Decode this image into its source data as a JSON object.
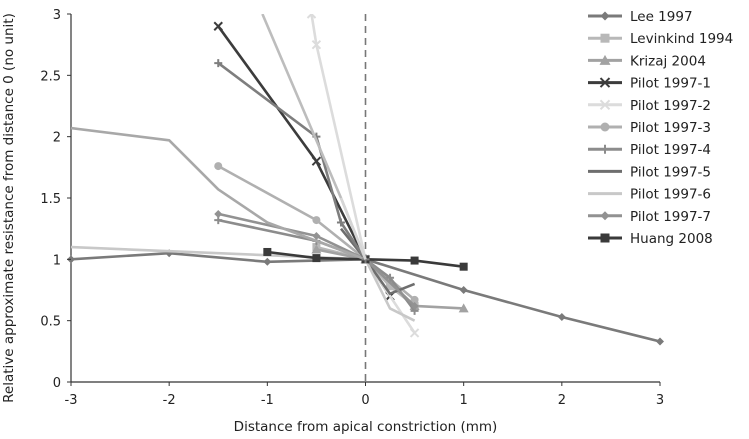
{
  "chart_data": {
    "type": "line",
    "title": "",
    "xlabel": "Distance from apical constriction (mm)",
    "ylabel": "Relative approximate resistance from distance 0 (no unit)",
    "xlim": [
      -3,
      3
    ],
    "ylim": [
      0,
      3
    ],
    "xticks": [
      "-3",
      "-2",
      "-1",
      "0",
      "1",
      "2",
      "3"
    ],
    "yticks": [
      "0",
      "0.5",
      "1",
      "1.5",
      "2",
      "2.5",
      "3"
    ],
    "grid": false,
    "legend_position": "right",
    "reference_line": {
      "x": 0,
      "style": "dashed"
    },
    "series": [
      {
        "name": "Lee 1997",
        "color": "#7a7a7a",
        "marker": "diamond",
        "points": [
          [
            -3,
            1.0
          ],
          [
            -2,
            1.05
          ],
          [
            -1,
            0.98
          ],
          [
            0,
            1.0
          ],
          [
            1,
            0.75
          ],
          [
            2,
            0.53
          ],
          [
            3,
            0.33
          ]
        ]
      },
      {
        "name": "Levinkind 1994",
        "color": "#b8b8b8",
        "marker": "square",
        "points": [
          [
            -0.5,
            1.1
          ],
          [
            0,
            1.0
          ],
          [
            0.25,
            0.78
          ],
          [
            0.5,
            0.62
          ]
        ]
      },
      {
        "name": "Krizaj 2004",
        "color": "#a2a2a2",
        "marker": "triangle",
        "points": [
          [
            -0.5,
            1.08
          ],
          [
            0,
            1.0
          ],
          [
            0.5,
            0.62
          ],
          [
            1,
            0.6
          ]
        ]
      },
      {
        "name": "Pilot 1997-1",
        "color": "#3c3c3c",
        "marker": "x",
        "points": [
          [
            -1.5,
            2.9
          ],
          [
            -0.5,
            1.8
          ],
          [
            0,
            1.0
          ],
          [
            0.25,
            0.7
          ]
        ]
      },
      {
        "name": "Pilot 1997-2",
        "color": "#dcdcdc",
        "marker": "x",
        "points": [
          [
            -0.55,
            3.0
          ],
          [
            -0.5,
            2.75
          ],
          [
            0,
            1.0
          ],
          [
            0.5,
            0.4
          ]
        ]
      },
      {
        "name": "Pilot 1997-3",
        "color": "#b0b0b0",
        "marker": "circle",
        "points": [
          [
            -1.5,
            1.76
          ],
          [
            -0.5,
            1.32
          ],
          [
            0,
            1.0
          ],
          [
            0.5,
            0.67
          ]
        ]
      },
      {
        "name": "Pilot 1997-4",
        "color": "#8c8c8c",
        "marker": "plus",
        "points": [
          [
            -1.5,
            1.32
          ],
          [
            -0.5,
            1.15
          ],
          [
            0,
            1.0
          ],
          [
            0.25,
            0.85
          ],
          [
            0.5,
            0.58
          ]
        ]
      },
      {
        "name": "Pilot 1997-5",
        "color": "#6e6e6e",
        "marker": "none",
        "points": [
          [
            -0.25,
            1.25
          ],
          [
            0,
            1.0
          ],
          [
            0.25,
            0.72
          ],
          [
            0.5,
            0.8
          ]
        ]
      },
      {
        "name": "Pilot 1997-6",
        "color": "#c8c8c8",
        "marker": "none",
        "points": [
          [
            -3,
            1.1
          ],
          [
            0,
            1.0
          ],
          [
            0.25,
            0.6
          ],
          [
            0.5,
            0.5
          ]
        ]
      },
      {
        "name": "Pilot 1997-7",
        "color": "#929292",
        "marker": "diamond",
        "points": [
          [
            -1.5,
            1.37
          ],
          [
            -0.5,
            1.19
          ],
          [
            0,
            1.0
          ],
          [
            0.5,
            0.62
          ]
        ]
      },
      {
        "name": "Huang 2008",
        "color": "#3a3a3a",
        "marker": "square",
        "points": [
          [
            -1,
            1.06
          ],
          [
            -0.5,
            1.01
          ],
          [
            0,
            1.0
          ],
          [
            0.5,
            0.99
          ],
          [
            1,
            0.94
          ]
        ]
      },
      {
        "name": "",
        "color": "#a8a8a8",
        "marker": "none",
        "points": [
          [
            -3,
            2.07
          ],
          [
            -2,
            1.97
          ],
          [
            -1.5,
            1.57
          ],
          [
            -1,
            1.3
          ],
          [
            -0.5,
            1.15
          ],
          [
            0,
            1.0
          ]
        ]
      },
      {
        "name": "",
        "color": "#7e7e7e",
        "marker": "plus",
        "points": [
          [
            -1.5,
            2.6
          ],
          [
            -0.5,
            2.0
          ],
          [
            -0.25,
            1.3
          ],
          [
            0,
            1.0
          ]
        ]
      },
      {
        "name": "",
        "color": "#bdbdbd",
        "marker": "none",
        "points": [
          [
            -1.05,
            3.0
          ],
          [
            -0.25,
            1.5
          ],
          [
            0,
            1.0
          ]
        ]
      },
      {
        "name": "",
        "color": "#d6d6d6",
        "marker": "none",
        "points": [
          [
            -0.25,
            1.5
          ],
          [
            0,
            1.0
          ]
        ]
      }
    ]
  }
}
